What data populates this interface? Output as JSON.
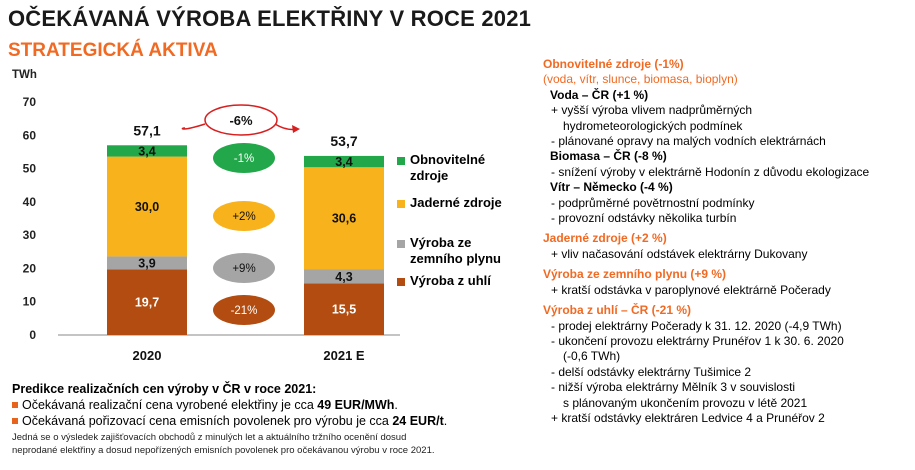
{
  "header": {
    "title": "OČEKÁVANÁ VÝROBA ELEKTŘINY V ROCE 2021",
    "subtitle": "STRATEGICKÁ AKTIVA"
  },
  "colors": {
    "accent_orange": "#f06a23",
    "renewables": "#22a84a",
    "nuclear": "#f8b21c",
    "gas": "#a5a5a5",
    "coal": "#b24c10",
    "change_arrow": "#d81e1e"
  },
  "chart_data": {
    "type": "bar",
    "stacked": true,
    "ylabel": "TWh",
    "ylim": [
      0,
      70
    ],
    "yticks": [
      0,
      10,
      20,
      30,
      40,
      50,
      60,
      70
    ],
    "categories": [
      "2020",
      "2021 E"
    ],
    "totals": [
      "57,1",
      "53,7"
    ],
    "total_change": "-6%",
    "series": [
      {
        "name": "Výroba z uhlí",
        "values": [
          19.7,
          15.5
        ],
        "labels": [
          "19,7",
          "15,5"
        ],
        "change": "-21%",
        "color": "#b24c10"
      },
      {
        "name": "Výroba ze zemního plynu",
        "values": [
          3.9,
          4.3
        ],
        "labels": [
          "3,9",
          "4,3"
        ],
        "change": "+9%",
        "color": "#a5a5a5"
      },
      {
        "name": "Jaderné zdroje",
        "values": [
          30.0,
          30.6
        ],
        "labels": [
          "30,0",
          "30,6"
        ],
        "change": "+2%",
        "color": "#f8b21c"
      },
      {
        "name": "Obnovitelné zdroje",
        "values": [
          3.4,
          3.4
        ],
        "labels": [
          "3,4",
          "3,4"
        ],
        "change": "-1%",
        "color": "#22a84a"
      }
    ],
    "legend": [
      {
        "line1": "Obnovitelné",
        "line2": "zdroje",
        "color": "#22a84a"
      },
      {
        "line1": "Jaderné zdroje",
        "line2": "",
        "color": "#f8b21c"
      },
      {
        "line1": "Výroba ze",
        "line2": "zemního plynu",
        "color": "#a5a5a5"
      },
      {
        "line1": "Výroba z uhlí",
        "line2": "",
        "color": "#b24c10"
      }
    ],
    "legend_position": "right"
  },
  "predikce": {
    "title": "Predikce realizačních cen výroby v ČR v roce 2021:",
    "line1_text": "Očekávaná realizační cena vyrobené elektřiny je cca ",
    "line1_value": "49 EUR/MWh",
    "line1_end": ".",
    "line2_text": "Očekávaná pořizovací cena emisních povolenek pro výrobu je cca ",
    "line2_value": "24 EUR/t",
    "line2_end": ".",
    "note1": "Jedná se o výsledek zajišťovacích obchodů z minulých let a aktuálního tržního ocenění dosud",
    "note2": "neprodané elektřiny a dosud nepořízených emisních povolenek pro očekávanou výrobu v roce 2021."
  },
  "right_panel": {
    "renew_head": "Obnovitelné zdroje (-1%)",
    "renew_sub": "(voda, vítr, slunce, biomasa, bioplyn)",
    "voda_head": "Voda – ČR (+1 %)",
    "voda_l1": "+ vyšší výroba vlivem nadprůměrných",
    "voda_l2": "hydrometeorologických podmínek",
    "voda_l3": "- plánované opravy na malých vodních elektrárnách",
    "bio_head": "Biomasa – ČR (-8 %)",
    "bio_l1": "- snížení výroby v elektrárně Hodonín z důvodu ekologizace",
    "vitr_head": "Vítr – Německo (-4 %)",
    "vitr_l1": "- podprůměrné povětrnostní podmínky",
    "vitr_l2": "- provozní odstávky několika turbín",
    "nuc_head": "Jaderné zdroje (+2 %)",
    "nuc_l1": "+ vliv načasování odstávek elektrárny Dukovany",
    "gas_head": "Výroba ze zemního plynu (+9 %)",
    "gas_l1": "+ kratší odstávka v paroplynové elektrárně Počerady",
    "coal_head": "Výroba z uhlí – ČR (-21 %)",
    "coal_l1": "- prodej elektrárny Počerady k 31. 12. 2020 (-4,9 TWh)",
    "coal_l2": "- ukončení provozu elektrárny Prunéřov 1 k 30. 6. 2020",
    "coal_l3": "(-0,6 TWh)",
    "coal_l4": "- delší odstávky elektrárny Tušimice 2",
    "coal_l5": "- nižší výroba elektrárny Mělník 3 v souvislosti",
    "coal_l6": "s plánovaným ukončením provozu v létě 2021",
    "coal_l7": "+ kratší odstávky elektráren Ledvice 4 a Prunéřov 2"
  }
}
